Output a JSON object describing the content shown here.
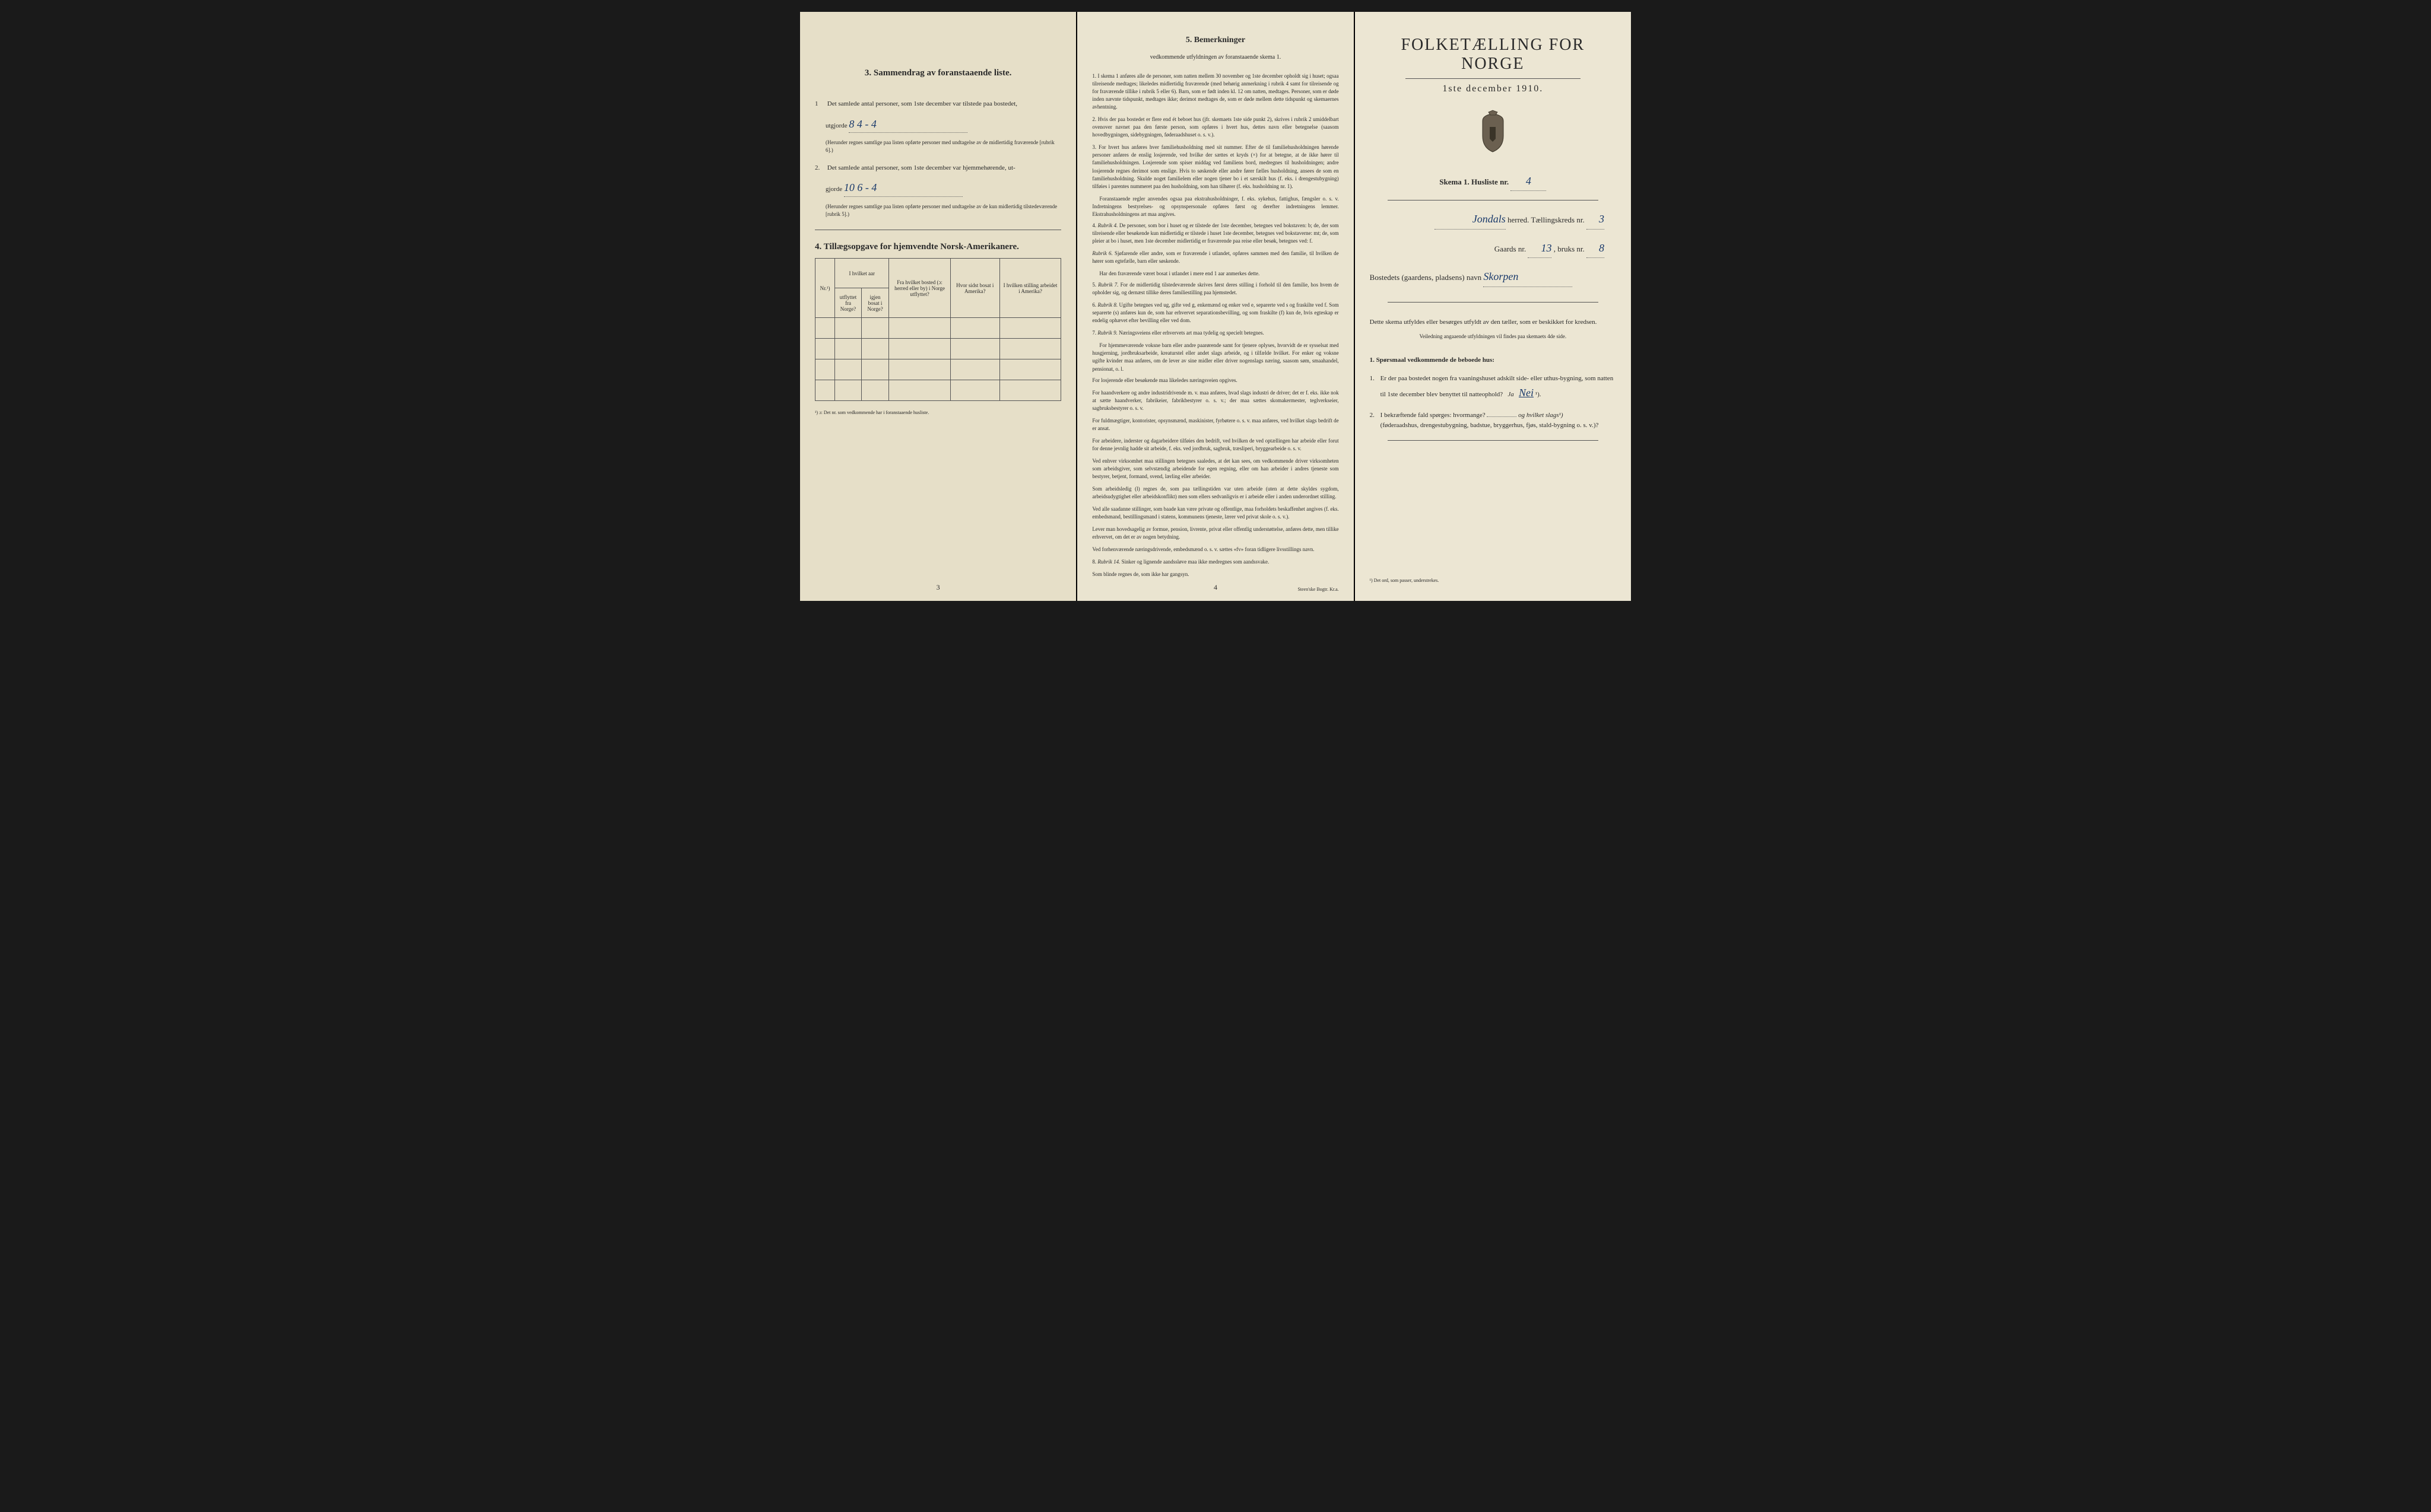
{
  "colors": {
    "background": "#1a1a1a",
    "paper_left": "#e6dfc8",
    "paper_middle": "#eae4d0",
    "paper_right": "#ece6d3",
    "text": "#2a2a2a",
    "handwritten": "#1a3a6b"
  },
  "left_panel": {
    "section3": {
      "title": "3. Sammendrag av foranstaaende liste.",
      "item1_prefix": "1",
      "item1_text": "Det samlede antal personer, som 1ste december var tilstede paa bostedet,",
      "item1_label": "utgjorde",
      "item1_value": "8   4 - 4",
      "item1_note": "(Herunder regnes samtlige paa listen opførte personer med undtagelse av de midlertidig fraværende [rubrik 6].)",
      "item2_prefix": "2.",
      "item2_text": "Det samlede antal personer, som 1ste december var hjemmehørende, ut-",
      "item2_label": "gjorde",
      "item2_value": "10   6 - 4",
      "item2_note": "(Herunder regnes samtlige paa listen opførte personer med undtagelse av de kun midlertidig tilstedeværende [rubrik 5].)"
    },
    "section4": {
      "title": "4. Tillægsopgave for hjemvendte Norsk-Amerikanere.",
      "table_headers": {
        "col1": "Nr.¹)",
        "col2_top": "I hvilket aar",
        "col2a": "utflyttet fra Norge?",
        "col2b": "igjen bosat i Norge?",
        "col3": "Fra hvilket bosted (ɔ: herred eller by) i Norge utflyttet?",
        "col4": "Hvor sidst bosat i Amerika?",
        "col5": "I hvilken stilling arbeidet i Amerika?"
      },
      "footnote": "¹) ɔ: Det nr. som vedkommende har i foranstaaende husliste."
    },
    "page_num": "3"
  },
  "middle_panel": {
    "title": "5. Bemerkninger",
    "subtitle": "vedkommende utfyldningen av foranstaaende skema 1.",
    "items": [
      {
        "num": "1.",
        "text": "I skema 1 anføres alle de personer, som natten mellem 30 november og 1ste december opholdt sig i huset; ogsaa tilreisende medtages; likeledes midlertidig fraværende (med behørig anmerkning i rubrik 4 samt for tilreisende og for fraværende tillike i rubrik 5 eller 6). Barn, som er født inden kl. 12 om natten, medtages. Personer, som er døde inden nævnte tidspunkt, medtages ikke; derimot medtages de, som er døde mellem dette tidspunkt og skemaernes avhentning."
      },
      {
        "num": "2.",
        "text": "Hvis der paa bostedet er flere end ét beboet hus (jfr. skemaets 1ste side punkt 2), skrives i rubrik 2 umiddelbart ovenover navnet paa den første person, som opføres i hvert hus, dettes navn eller betegnelse (saasom hovedbygningen, sidebygningen, føderaadshuset o. s. v.)."
      },
      {
        "num": "3.",
        "text": "For hvert hus anføres hver familiehusholdning med sit nummer. Efter de til familiehusholdningen hørende personer anføres de enslig losjerende, ved hvilke der sættes et kryds (×) for at betegne, at de ikke hører til familiehusholdningen. Losjerende som spiser middag ved familiens bord, medregnes til husholdningen; andre losjerende regnes derimot som enslige. Hvis to søskende eller andre fører fælles husholdning, ansees de som en familiehusholdning. Skulde noget familielem eller nogen tjener bo i et særskilt hus (f. eks. i drengestubygning) tilføies i parentes nummeret paa den husholdning, som han tilhører (f. eks. husholdning nr. 1).",
        "extra": "Foranstaaende regler anvendes ogsaa paa ekstrahusholdninger, f. eks. sykehus, fattighus, fængsler o. s. v. Indretningens bestyrelses- og opsynspersonale opføres først og derefter indretningens lemmer. Ekstrahusholdningens art maa angives."
      },
      {
        "num": "4.",
        "label": "Rubrik 4.",
        "text": "De personer, som bor i huset og er tilstede der 1ste december, betegnes ved bokstaven: b; de, der som tilreisende eller besøkende kun midlertidig er tilstede i huset 1ste december, betegnes ved bokstaverne: mt; de, som pleier at bo i huset, men 1ste december midlertidig er fraværende paa reise eller besøk, betegnes ved: f."
      },
      {
        "label": "Rubrik 6.",
        "text": "Sjøfarende eller andre, som er fraværende i utlandet, opføres sammen med den familie, til hvilken de hører som egtefælle, barn eller søskende.",
        "extra": "Har den fraværende været bosat i utlandet i mere end 1 aar anmerkes dette."
      },
      {
        "num": "5.",
        "label": "Rubrik 7.",
        "text": "For de midlertidig tilstedeværende skrives først deres stilling i forhold til den familie, hos hvem de opholder sig, og dernæst tillike deres familiestilling paa hjemstedet."
      },
      {
        "num": "6.",
        "label": "Rubrik 8.",
        "text": "Ugifte betegnes ved ug, gifte ved g, enkemænd og enker ved e, separerte ved s og fraskilte ved f. Som separerte (s) anføres kun de, som har erhvervet separationsbevilling, og som fraskilte (f) kun de, hvis egteskap er endelig ophævet efter bevilling eller ved dom."
      },
      {
        "num": "7.",
        "label": "Rubrik 9.",
        "text": "Næringsveiens eller erhvervets art maa tydelig og specielt betegnes.",
        "extra": "For hjemmeværende voksne barn eller andre paarørende samt for tjenere oplyses, hvorvidt de er sysselsat med husgjerning, jordbruksarbeide, kreaturstel eller andet slags arbeide, og i tilfælde hvilket. For enker og voksne ugifte kvinder maa anføres, om de lever av sine midler eller driver nogenslags næring, saasom søm, smaahandel, pensionat, o. l."
      },
      {
        "text": "For losjerende eller besøkende maa likeledes næringsveien opgives."
      },
      {
        "text": "For haandverkere og andre industridrivende m. v. maa anføres, hvad slags industri de driver; det er f. eks. ikke nok at sætte haandverker, fabrikeier, fabrikbestyrer o. s. v.; der maa sættes skomakermester, teglverkseier, sagbruksbestyrer o. s. v."
      },
      {
        "text": "For fuldmægtiger, kontorister, opsynsmænd, maskinister, fyrbøtere o. s. v. maa anføres, ved hvilket slags bedrift de er ansat."
      },
      {
        "text": "For arbeidere, inderster og dagarbeidere tilføies den bedrift, ved hvilken de ved optællingen har arbeide eller forut for denne jevnlig hadde sit arbeide, f. eks. ved jordbruk, sagbruk, træsliperi, bryggearbeide o. s. v."
      },
      {
        "text": "Ved enhver virksomhet maa stillingen betegnes saaledes, at det kan sees, om vedkommende driver virksomheten som arbeidsgiver, som selvstændig arbeidende for egen regning, eller om han arbeider i andres tjeneste som bestyrer, betjent, formand, svend, lærling eller arbeider."
      },
      {
        "text": "Som arbeidsledig (l) regnes de, som paa tællingstiden var uten arbeide (uten at dette skyldes sygdom, arbeidsudygtighet eller arbeidskonflikt) men som ellers sedvanligvis er i arbeide eller i anden underordnet stilling."
      },
      {
        "text": "Ved alle saadanne stillinger, som baade kan være private og offentlige, maa forholdets beskaffenhet angives (f. eks. embedsmand, bestillingsmand i statens, kommunens tjeneste, lærer ved privat skole o. s. v.)."
      },
      {
        "text": "Lever man hovedsagelig av formue, pension, livrente, privat eller offentlig understøttelse, anføres dette, men tillike erhvervet, om det er av nogen betydning."
      },
      {
        "text": "Ved forhenværende næringsdrivende, embedsmænd o. s. v. sættes «fv» foran tidligere livsstillings navn."
      },
      {
        "num": "8.",
        "label": "Rubrik 14.",
        "text": "Sinker og lignende aandssløve maa ikke medregnes som aandssvake."
      },
      {
        "text": "Som blinde regnes de, som ikke har gangsyn."
      }
    ],
    "page_num": "4",
    "printer": "Steen'ske Bogtr. Kr.a."
  },
  "right_panel": {
    "main_title": "FOLKETÆLLING FOR NORGE",
    "subtitle": "1ste december 1910.",
    "skema_label": "Skema 1.  Husliste nr.",
    "husliste_nr": "4",
    "herred_value": "Jondals",
    "herred_label": "herred.  Tællingskreds nr.",
    "kreds_nr": "3",
    "gaards_label": "Gaards nr.",
    "gaards_nr": "13",
    "bruks_label": ", bruks nr.",
    "bruks_nr": "8",
    "bosteds_label": "Bostedets (gaardens, pladsens) navn",
    "bosteds_value": "Skorpen",
    "instruction1": "Dette skema utfyldes eller besørges utfyldt av den tæller, som er beskikket for kredsen.",
    "instruction2": "Veiledning angaaende utfyldningen vil findes paa skemaets 4de side.",
    "section1_title": "1. Spørsmaal vedkommende de beboede hus:",
    "q1_num": "1.",
    "q1_text": "Er der paa bostedet nogen fra vaaningshuset adskilt side- eller uthus-bygning, som natten til 1ste december blev benyttet til natteophold?",
    "q1_ja": "Ja",
    "q1_nei": "Nei",
    "q1_suffix": "¹).",
    "q2_num": "2.",
    "q2_text": "I bekræftende fald spørges: hvormange?",
    "q2_text2": "og hvilket slags¹)",
    "q2_text3": "(føderaadshus, drengestubygning, badstue, bryggerhus, fjøs, stald-bygning o. s. v.)?",
    "bottom_footnote": "¹) Det ord, som passer, understrekes."
  }
}
